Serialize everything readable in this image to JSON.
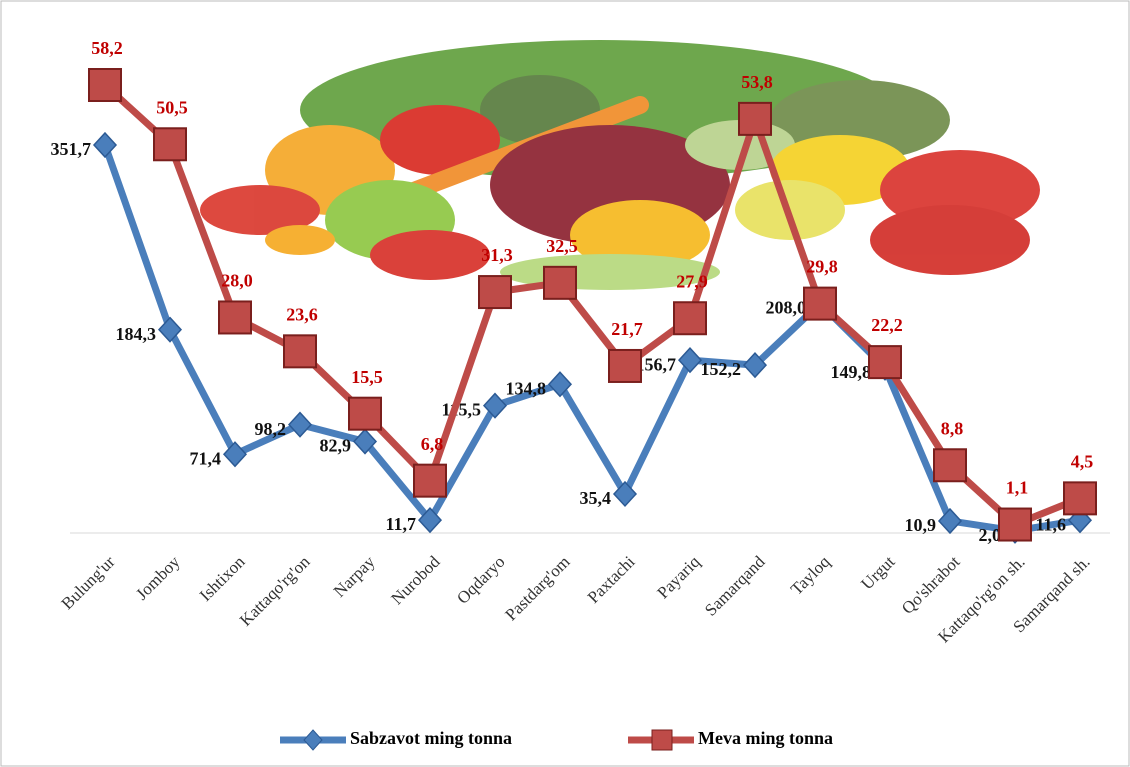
{
  "chart_data": {
    "type": "line",
    "categories": [
      "Bulung'ur",
      "Jomboy",
      "Ishtixon",
      "Kattaqo'rg'on",
      "Narpay",
      "Nurobod",
      "Oqdaryo",
      "Pastdarg'om",
      "Paxtachi",
      "Payariq",
      "Samarqand",
      "Tayloq",
      "Urgut",
      "Qo'shrabot",
      "Kattaqo'rg'on sh.",
      "Samarqand sh."
    ],
    "series": [
      {
        "name": "Sabzavot ming tonna",
        "color": "#4a7ebb",
        "marker": "diamond",
        "values": [
          351.7,
          184.3,
          71.4,
          98.2,
          82.9,
          11.7,
          115.5,
          134.8,
          35.4,
          156.7,
          152.2,
          208.0,
          149.8,
          10.9,
          2.0,
          11.6
        ],
        "value_labels": [
          "351,7",
          "184,3",
          "71,4",
          "98,2",
          "82,9",
          "11,7",
          "115,5",
          "134,8",
          "35,4",
          "156,7",
          "152,2",
          "208,0",
          "149,8",
          "10,9",
          "2,0",
          "11,6"
        ]
      },
      {
        "name": "Meva ming tonna",
        "color": "#be4b48",
        "marker": "square",
        "values": [
          58.2,
          50.5,
          28.0,
          23.6,
          15.5,
          6.8,
          31.3,
          32.5,
          21.7,
          27.9,
          53.8,
          29.8,
          22.2,
          8.8,
          1.1,
          4.5
        ],
        "value_labels": [
          "58,2",
          "50,5",
          "28,0",
          "23,6",
          "15,5",
          "6,8",
          "31,3",
          "32,5",
          "21,7",
          "27,9",
          "53,8",
          "29,8",
          "22,2",
          "8,8",
          "1,1",
          "4,5"
        ]
      }
    ],
    "legend": "bottom"
  }
}
